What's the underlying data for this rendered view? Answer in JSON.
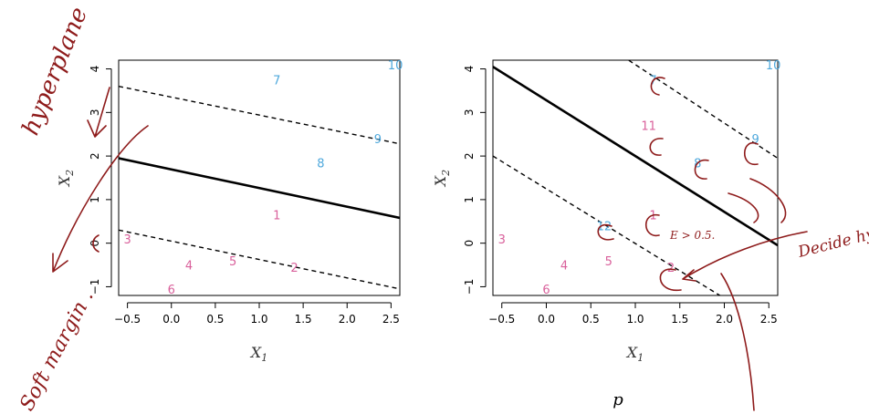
{
  "chart_data": [
    {
      "type": "scatter",
      "title": "",
      "xlabel": "X1",
      "ylabel": "X2",
      "xlim": [
        -0.6,
        2.6
      ],
      "ylim": [
        -1.2,
        4.2
      ],
      "x_ticks": [
        -0.5,
        0.0,
        0.5,
        1.0,
        1.5,
        2.0,
        2.5
      ],
      "y_ticks": [
        -1,
        0,
        1,
        2,
        3,
        4
      ],
      "points": [
        {
          "label": "1",
          "x": 1.2,
          "y": 0.65,
          "class": "red"
        },
        {
          "label": "2",
          "x": 1.4,
          "y": -0.55,
          "class": "red"
        },
        {
          "label": "3",
          "x": -0.5,
          "y": 0.1,
          "class": "red"
        },
        {
          "label": "4",
          "x": 0.2,
          "y": -0.5,
          "class": "red"
        },
        {
          "label": "5",
          "x": 0.7,
          "y": -0.4,
          "class": "red"
        },
        {
          "label": "6",
          "x": 0.0,
          "y": -1.05,
          "class": "red"
        },
        {
          "label": "7",
          "x": 1.2,
          "y": 3.75,
          "class": "blue"
        },
        {
          "label": "8",
          "x": 1.7,
          "y": 1.85,
          "class": "blue"
        },
        {
          "label": "9",
          "x": 2.35,
          "y": 2.4,
          "class": "blue"
        },
        {
          "label": "10",
          "x": 2.55,
          "y": 4.1,
          "class": "blue"
        }
      ],
      "lines": [
        {
          "name": "hyperplane",
          "style": "solid",
          "x": [
            -0.6,
            2.6
          ],
          "y": [
            1.95,
            0.58
          ]
        },
        {
          "name": "margin-upper",
          "style": "dashed",
          "x": [
            -0.6,
            2.6
          ],
          "y": [
            3.6,
            2.28
          ]
        },
        {
          "name": "margin-lower",
          "style": "dashed",
          "x": [
            -0.6,
            2.6
          ],
          "y": [
            0.3,
            -1.05
          ]
        }
      ]
    },
    {
      "type": "scatter",
      "title": "",
      "xlabel": "X1",
      "ylabel": "X2",
      "xlim": [
        -0.6,
        2.6
      ],
      "ylim": [
        -1.2,
        4.2
      ],
      "x_ticks": [
        -0.5,
        0.0,
        0.5,
        1.0,
        1.5,
        2.0,
        2.5
      ],
      "y_ticks": [
        -1,
        0,
        1,
        2,
        3,
        4
      ],
      "points": [
        {
          "label": "1",
          "x": 1.2,
          "y": 0.65,
          "class": "red"
        },
        {
          "label": "2",
          "x": 1.4,
          "y": -0.55,
          "class": "red"
        },
        {
          "label": "3",
          "x": -0.5,
          "y": 0.1,
          "class": "red"
        },
        {
          "label": "4",
          "x": 0.2,
          "y": -0.5,
          "class": "red"
        },
        {
          "label": "5",
          "x": 0.7,
          "y": -0.4,
          "class": "red"
        },
        {
          "label": "6",
          "x": 0.0,
          "y": -1.05,
          "class": "red"
        },
        {
          "label": "7",
          "x": 1.2,
          "y": 3.75,
          "class": "blue"
        },
        {
          "label": "8",
          "x": 1.7,
          "y": 1.85,
          "class": "blue"
        },
        {
          "label": "9",
          "x": 2.35,
          "y": 2.4,
          "class": "blue"
        },
        {
          "label": "10",
          "x": 2.55,
          "y": 4.1,
          "class": "blue"
        },
        {
          "label": "11",
          "x": 1.15,
          "y": 2.7,
          "class": "red"
        },
        {
          "label": "12",
          "x": 0.65,
          "y": 0.4,
          "class": "blue"
        }
      ],
      "lines": [
        {
          "name": "hyperplane",
          "style": "solid",
          "x": [
            -0.6,
            2.6
          ],
          "y": [
            4.05,
            -0.05
          ]
        },
        {
          "name": "margin-upper",
          "style": "dashed",
          "x": [
            0.85,
            2.6
          ],
          "y": [
            4.3,
            1.95
          ]
        },
        {
          "name": "margin-lower",
          "style": "dashed",
          "x": [
            -0.6,
            1.95
          ],
          "y": [
            2.0,
            -1.2
          ]
        }
      ]
    }
  ],
  "colors": {
    "red_class": "#d9609b",
    "blue_class": "#4ea8dc",
    "ink": "#8e1b1b"
  },
  "annotations": {
    "hyperplane": "hyperplane",
    "soft_margin": "Soft margin .",
    "decide_hyperplane": "Decide hyperplane .",
    "epsilon_note": "E > 0.5.",
    "footer_p": "p"
  }
}
